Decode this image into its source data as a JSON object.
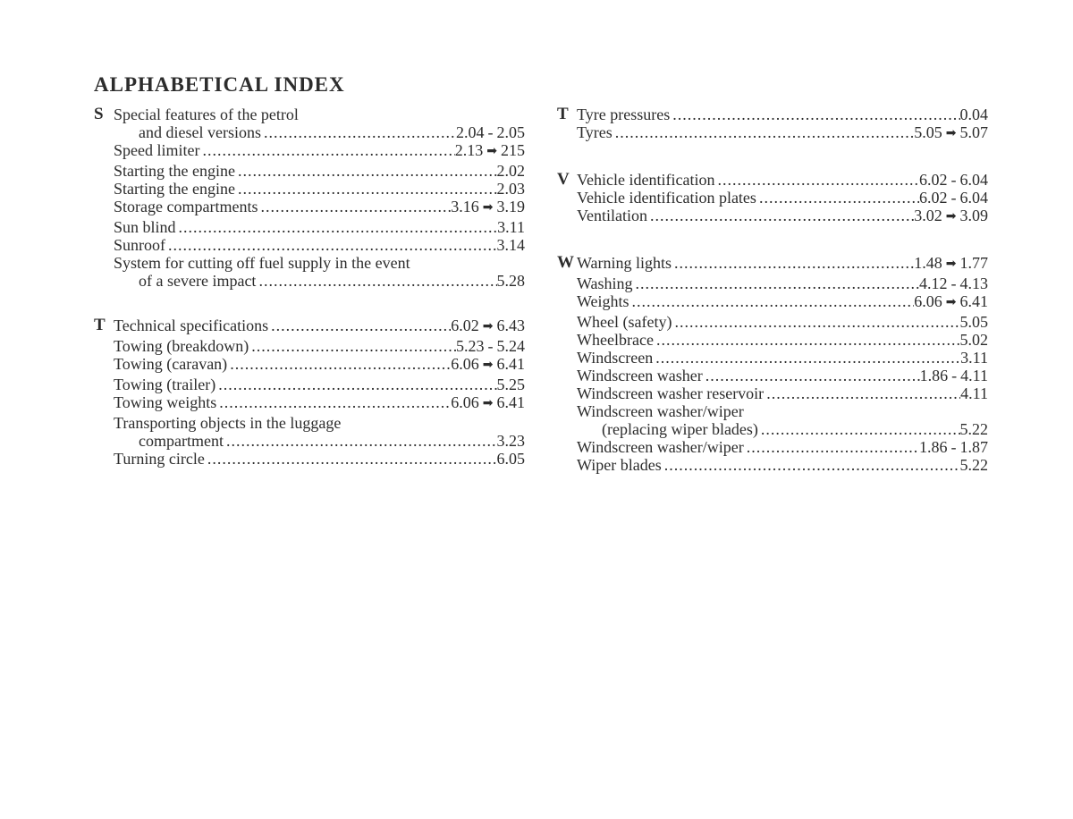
{
  "title": "ALPHABETICAL INDEX",
  "arrow_glyph": "➡",
  "columns": [
    {
      "sections": [
        {
          "letter": "S",
          "entries": [
            {
              "lines": [
                "Special features of the petrol",
                "and diesel versions"
              ],
              "p1": "2.04",
              "sep": "dash",
              "p2": "2.05"
            },
            {
              "lines": [
                "Speed limiter"
              ],
              "p1": "2.13",
              "sep": "arrow",
              "p2": "215"
            },
            {
              "lines": [
                "Starting the engine"
              ],
              "p1": "2.02"
            },
            {
              "lines": [
                "Starting the engine"
              ],
              "p1": "2.03"
            },
            {
              "lines": [
                "Storage compartments"
              ],
              "p1": "3.16",
              "sep": "arrow",
              "p2": "3.19"
            },
            {
              "lines": [
                "Sun blind"
              ],
              "p1": "3.11"
            },
            {
              "lines": [
                "Sunroof"
              ],
              "p1": "3.14"
            },
            {
              "lines": [
                "System for cutting off fuel supply in the event",
                "of a severe impact"
              ],
              "p1": "5.28"
            }
          ]
        },
        {
          "letter": "T",
          "entries": [
            {
              "lines": [
                "Technical specifications"
              ],
              "p1": "6.02",
              "sep": "arrow",
              "p2": "6.43"
            },
            {
              "lines": [
                "Towing (breakdown)"
              ],
              "p1": "5.23",
              "sep": "dash",
              "p2": "5.24"
            },
            {
              "lines": [
                "Towing (caravan)"
              ],
              "p1": "6.06",
              "sep": "arrow",
              "p2": "6.41"
            },
            {
              "lines": [
                "Towing (trailer)"
              ],
              "p1": "5.25"
            },
            {
              "lines": [
                "Towing weights"
              ],
              "p1": "6.06",
              "sep": "arrow",
              "p2": "6.41"
            },
            {
              "lines": [
                "Transporting objects in the luggage",
                "compartment"
              ],
              "p1": "3.23"
            },
            {
              "lines": [
                "Turning circle"
              ],
              "p1": "6.05"
            }
          ]
        }
      ]
    },
    {
      "sections": [
        {
          "letter": "T",
          "entries": [
            {
              "lines": [
                "Tyre pressures"
              ],
              "p1": "0.04"
            },
            {
              "lines": [
                "Tyres"
              ],
              "p1": "5.05",
              "sep": "arrow",
              "p2": "5.07"
            }
          ]
        },
        {
          "letter": "V",
          "entries": [
            {
              "lines": [
                "Vehicle identification"
              ],
              "p1": "6.02",
              "sep": "dash",
              "p2": "6.04"
            },
            {
              "lines": [
                "Vehicle identification plates"
              ],
              "p1": "6.02",
              "sep": "dash",
              "p2": "6.04"
            },
            {
              "lines": [
                "Ventilation"
              ],
              "p1": "3.02",
              "sep": "arrow",
              "p2": "3.09"
            }
          ]
        },
        {
          "letter": "W",
          "entries": [
            {
              "lines": [
                "Warning lights"
              ],
              "p1": "1.48",
              "sep": "arrow",
              "p2": "1.77"
            },
            {
              "lines": [
                "Washing"
              ],
              "p1": "4.12",
              "sep": "dash",
              "p2": "4.13"
            },
            {
              "lines": [
                "Weights"
              ],
              "p1": "6.06",
              "sep": "arrow",
              "p2": "6.41"
            },
            {
              "lines": [
                "Wheel (safety)"
              ],
              "p1": "5.05"
            },
            {
              "lines": [
                "Wheelbrace"
              ],
              "p1": "5.02"
            },
            {
              "lines": [
                "Windscreen"
              ],
              "p1": "3.11"
            },
            {
              "lines": [
                "Windscreen washer"
              ],
              "p1": "1.86",
              "sep": "dash",
              "p2": "4.11"
            },
            {
              "lines": [
                "Windscreen washer reservoir"
              ],
              "p1": "4.11"
            },
            {
              "lines": [
                "Windscreen washer/wiper",
                "(replacing wiper blades)"
              ],
              "p1": "5.22"
            },
            {
              "lines": [
                "Windscreen washer/wiper"
              ],
              "p1": "1.86",
              "sep": "dash",
              "p2": "1.87"
            },
            {
              "lines": [
                "Wiper blades"
              ],
              "p1": "5.22"
            }
          ]
        }
      ]
    }
  ]
}
